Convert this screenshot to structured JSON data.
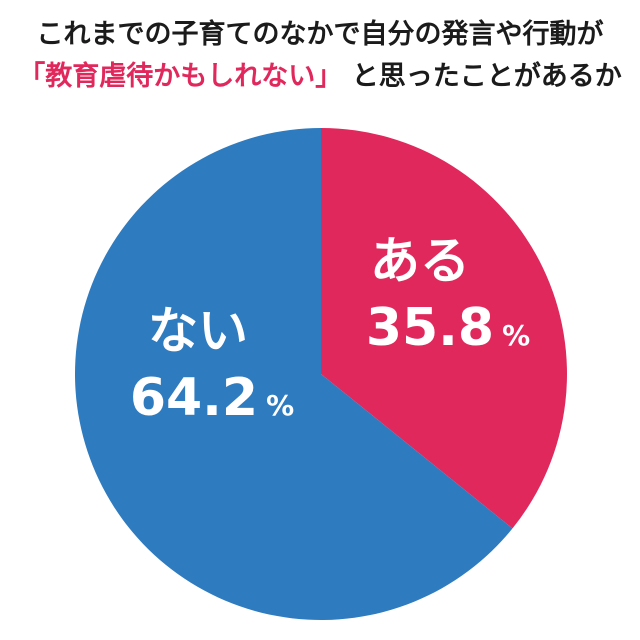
{
  "title": {
    "line1": "これまでの子育てのなかで自分の発言や行動が",
    "line2_highlight": "「教育虐待かもしれない」",
    "line2_rest": " と思ったことがあるか"
  },
  "colors": {
    "highlight": "#e0285c",
    "slice_aru": "#e0285c",
    "slice_nai": "#2f7bbf",
    "title_text": "#1b1b1b",
    "label_text": "#ffffff",
    "background": "#ffffff"
  },
  "chart_data": {
    "type": "pie",
    "title": "これまでの子育てのなかで自分の発言や行動が「教育虐待かもしれない」と思ったことがあるか",
    "labels": [
      "ある",
      "ない"
    ],
    "values": [
      35.8,
      64.2
    ],
    "value_labels": [
      "35.8",
      "64.2"
    ],
    "unit": "%",
    "colors": [
      "#e0285c",
      "#2f7bbf"
    ],
    "start_angle_deg": 0,
    "direction": "clockwise",
    "legend": "none",
    "data_labels_inside": true
  }
}
